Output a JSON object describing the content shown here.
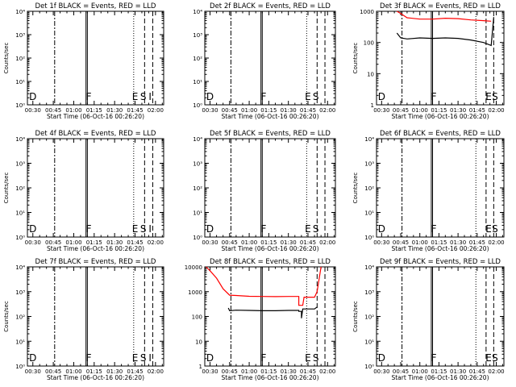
{
  "page": {
    "background": "#ffffff",
    "foreground": "#000000"
  },
  "colors": {
    "events": "#000000",
    "lld": "#ff0000"
  },
  "xaxis": {
    "label": "Start Time (06-Oct-16 00:26:20)",
    "ticks": [
      "00:30",
      "00:45",
      "01:00",
      "01:15",
      "01:30",
      "01:45",
      "02:00"
    ]
  },
  "chart_data": [
    {
      "type": "line",
      "title": "Det 1f BLACK = Events, RED = LLD",
      "ylabel": "Counts/sec",
      "yscale": "log",
      "ylim": [
        1,
        10000
      ],
      "yticks": [
        "10⁰",
        "10¹",
        "10²",
        "10³",
        "10⁴"
      ],
      "markers": [
        {
          "label": "D",
          "x": "00:30"
        },
        {
          "label": "F",
          "x": "01:11"
        },
        {
          "label": "E",
          "x": "01:45"
        },
        {
          "label": "S",
          "x": "01:51"
        },
        {
          "label": "I",
          "x": "01:56"
        }
      ],
      "series": []
    },
    {
      "type": "line",
      "title": "Det 2f BLACK = Events, RED = LLD",
      "ylabel": "",
      "yscale": "log",
      "ylim": [
        1,
        10000
      ],
      "yticks": [
        "10⁰",
        "10¹",
        "10²",
        "10³",
        "10⁴"
      ],
      "markers": [
        {
          "label": "D",
          "x": "00:30"
        },
        {
          "label": "F",
          "x": "01:11"
        },
        {
          "label": "E",
          "x": "01:45"
        },
        {
          "label": "S",
          "x": "01:51"
        }
      ],
      "series": []
    },
    {
      "type": "line",
      "title": "Det 3f BLACK = Events, RED = LLD",
      "ylabel": "Counts/sec",
      "yscale": "log",
      "ylim": [
        1,
        1000
      ],
      "yticks": [
        "1",
        "10",
        "100",
        "1000"
      ],
      "markers": [
        {
          "label": "D",
          "x": "00:30"
        },
        {
          "label": "F",
          "x": "01:11"
        },
        {
          "label": "E",
          "x": "01:54"
        },
        {
          "label": "S",
          "x": "01:59"
        }
      ],
      "series": [
        {
          "color": "#ff0000",
          "x": [
            "00:42",
            "00:45",
            "00:50",
            "01:00",
            "01:10",
            "01:20",
            "01:30",
            "01:40",
            "01:50",
            "01:56"
          ],
          "values": [
            1000,
            850,
            620,
            560,
            560,
            600,
            580,
            530,
            500,
            480
          ]
        },
        {
          "color": "#000000",
          "x": [
            "00:42",
            "00:45",
            "00:50",
            "01:00",
            "01:10",
            "01:20",
            "01:30",
            "01:40",
            "01:50",
            "01:56",
            "01:58"
          ],
          "values": [
            200,
            140,
            130,
            140,
            135,
            140,
            135,
            120,
            100,
            80,
            650
          ]
        }
      ]
    },
    {
      "type": "line",
      "title": "Det 4f BLACK = Events, RED = LLD",
      "ylabel": "Counts/sec",
      "yscale": "log",
      "ylim": [
        1,
        10000
      ],
      "yticks": [
        "10⁰",
        "10¹",
        "10²",
        "10³",
        "10⁴"
      ],
      "markers": [
        {
          "label": "D",
          "x": "00:30"
        },
        {
          "label": "F",
          "x": "01:11"
        },
        {
          "label": "E",
          "x": "01:45"
        },
        {
          "label": "S",
          "x": "01:51"
        },
        {
          "label": "I",
          "x": "01:56"
        }
      ],
      "series": []
    },
    {
      "type": "line",
      "title": "Det 5f BLACK = Events, RED = LLD",
      "ylabel": "",
      "yscale": "log",
      "ylim": [
        1,
        10000
      ],
      "yticks": [
        "10⁰",
        "10¹",
        "10²",
        "10³",
        "10⁴"
      ],
      "markers": [
        {
          "label": "D",
          "x": "00:30"
        },
        {
          "label": "F",
          "x": "01:11"
        },
        {
          "label": "E",
          "x": "01:45"
        },
        {
          "label": "S",
          "x": "01:51"
        }
      ],
      "series": []
    },
    {
      "type": "line",
      "title": "Det 6f BLACK = Events, RED = LLD",
      "ylabel": "Counts/sec",
      "yscale": "log",
      "ylim": [
        1,
        10000
      ],
      "yticks": [
        "10⁰",
        "10¹",
        "10²",
        "10³",
        "10⁴"
      ],
      "markers": [
        {
          "label": "D",
          "x": "00:30"
        },
        {
          "label": "F",
          "x": "01:11"
        },
        {
          "label": "E",
          "x": "01:54"
        },
        {
          "label": "S",
          "x": "01:59"
        }
      ],
      "series": []
    },
    {
      "type": "line",
      "title": "Det 7f BLACK = Events, RED = LLD",
      "ylabel": "Counts/sec",
      "yscale": "log",
      "ylim": [
        1,
        10000
      ],
      "yticks": [
        "10⁰",
        "10¹",
        "10²",
        "10³",
        "10⁴"
      ],
      "markers": [
        {
          "label": "D",
          "x": "00:30"
        },
        {
          "label": "F",
          "x": "01:11"
        },
        {
          "label": "E",
          "x": "01:45"
        },
        {
          "label": "S",
          "x": "01:51"
        },
        {
          "label": "I",
          "x": "01:56"
        }
      ],
      "series": []
    },
    {
      "type": "line",
      "title": "Det 8f BLACK = Events, RED = LLD",
      "ylabel": "",
      "yscale": "log",
      "ylim": [
        1,
        10000
      ],
      "yticks": [
        "1",
        "10",
        "100",
        "1000",
        "10000"
      ],
      "markers": [
        {
          "label": "D",
          "x": "00:30"
        },
        {
          "label": "F",
          "x": "01:11"
        },
        {
          "label": "E",
          "x": "01:45"
        },
        {
          "label": "S",
          "x": "01:51"
        }
      ],
      "series": [
        {
          "color": "#ff0000",
          "x": [
            "00:27",
            "00:30",
            "00:35",
            "00:40",
            "00:45",
            "00:50",
            "01:00",
            "01:10",
            "01:20",
            "01:30",
            "01:38",
            "01:38",
            "01:41",
            "01:42",
            "01:50",
            "01:52",
            "01:55"
          ],
          "values": [
            10000,
            7000,
            3500,
            1300,
            720,
            700,
            650,
            640,
            630,
            640,
            640,
            280,
            280,
            600,
            600,
            1000,
            10000
          ]
        },
        {
          "color": "#000000",
          "x": [
            "00:44",
            "00:45",
            "00:50",
            "01:00",
            "01:10",
            "01:20",
            "01:30",
            "01:38",
            "01:38",
            "01:40",
            "01:40",
            "01:41",
            "01:45",
            "01:50",
            "01:52"
          ],
          "values": [
            220,
            170,
            180,
            175,
            170,
            170,
            175,
            175,
            160,
            160,
            85,
            200,
            200,
            200,
            240
          ]
        }
      ]
    },
    {
      "type": "line",
      "title": "Det 9f BLACK = Events, RED = LLD",
      "ylabel": "Counts/sec",
      "yscale": "log",
      "ylim": [
        1,
        10000
      ],
      "yticks": [
        "10⁰",
        "10¹",
        "10²",
        "10³",
        "10⁴"
      ],
      "markers": [
        {
          "label": "D",
          "x": "00:30"
        },
        {
          "label": "F",
          "x": "01:11"
        },
        {
          "label": "E",
          "x": "01:54"
        },
        {
          "label": "S",
          "x": "01:59"
        }
      ],
      "series": []
    }
  ]
}
